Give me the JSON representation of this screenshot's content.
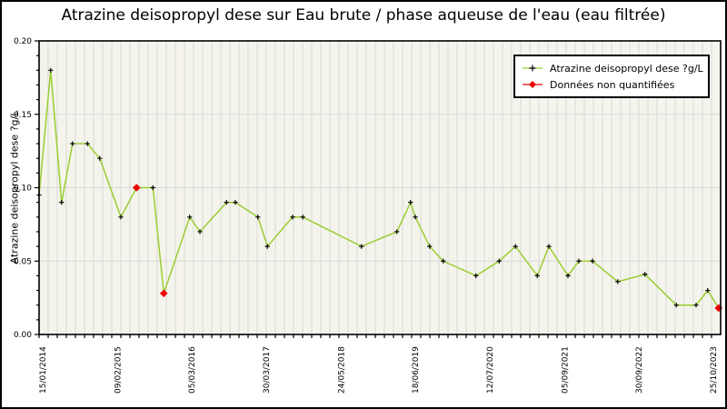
{
  "chart_data": {
    "type": "line",
    "title": "Atrazine deisopropyl dese sur Eau brute / phase aqueuse de l'eau (eau filtrée)",
    "ylabel": "Atrazine deisopropyl dese ?g/L",
    "xlabel": "",
    "ylim": [
      0.0,
      0.2
    ],
    "y_major_ticks": [
      0.0,
      0.05,
      0.1,
      0.15,
      0.2
    ],
    "y_minor_step": 0.01,
    "grid": {
      "vertical_minor": true,
      "horizontal_major": true
    },
    "legend_position": "top-right",
    "x_tick_labels": [
      "15/01/2014",
      "09/02/2015",
      "05/03/2016",
      "30/03/2017",
      "24/05/2018",
      "18/06/2019",
      "12/07/2020",
      "05/09/2021",
      "30/09/2022",
      "25/10/2023"
    ],
    "x_tick_pos": [
      0.005,
      0.115,
      0.224,
      0.333,
      0.443,
      0.552,
      0.661,
      0.771,
      0.88,
      0.989
    ],
    "legend": {
      "series_label": "Atrazine deisopropyl dese ?g/L",
      "non_quantified_label": "Données non quantifiées"
    },
    "series": [
      {
        "name": "Atrazine deisopropyl dese ?g/L",
        "color": "#9acd32",
        "marker": "plus",
        "points": [
          {
            "x": 0.0,
            "v": 0.095,
            "q": true
          },
          {
            "x": 0.017,
            "v": 0.18,
            "q": true
          },
          {
            "x": 0.033,
            "v": 0.09,
            "q": true
          },
          {
            "x": 0.049,
            "v": 0.13,
            "q": true
          },
          {
            "x": 0.071,
            "v": 0.13,
            "q": true
          },
          {
            "x": 0.089,
            "v": 0.12,
            "q": true
          },
          {
            "x": 0.12,
            "v": 0.08,
            "q": true
          },
          {
            "x": 0.143,
            "v": 0.1,
            "q": false
          },
          {
            "x": 0.167,
            "v": 0.1,
            "q": true
          },
          {
            "x": 0.183,
            "v": 0.028,
            "q": false
          },
          {
            "x": 0.221,
            "v": 0.08,
            "q": true
          },
          {
            "x": 0.236,
            "v": 0.07,
            "q": true
          },
          {
            "x": 0.275,
            "v": 0.09,
            "q": true
          },
          {
            "x": 0.288,
            "v": 0.09,
            "q": true
          },
          {
            "x": 0.321,
            "v": 0.08,
            "q": true
          },
          {
            "x": 0.335,
            "v": 0.06,
            "q": true
          },
          {
            "x": 0.372,
            "v": 0.08,
            "q": true
          },
          {
            "x": 0.387,
            "v": 0.08,
            "q": true
          },
          {
            "x": 0.473,
            "v": 0.06,
            "q": true
          },
          {
            "x": 0.525,
            "v": 0.07,
            "q": true
          },
          {
            "x": 0.545,
            "v": 0.09,
            "q": true
          },
          {
            "x": 0.552,
            "v": 0.08,
            "q": true
          },
          {
            "x": 0.573,
            "v": 0.06,
            "q": true
          },
          {
            "x": 0.593,
            "v": 0.05,
            "q": true
          },
          {
            "x": 0.641,
            "v": 0.04,
            "q": true
          },
          {
            "x": 0.675,
            "v": 0.05,
            "q": true
          },
          {
            "x": 0.699,
            "v": 0.06,
            "q": true
          },
          {
            "x": 0.731,
            "v": 0.04,
            "q": true
          },
          {
            "x": 0.748,
            "v": 0.06,
            "q": true
          },
          {
            "x": 0.776,
            "v": 0.04,
            "q": true
          },
          {
            "x": 0.792,
            "v": 0.05,
            "q": true
          },
          {
            "x": 0.812,
            "v": 0.05,
            "q": true
          },
          {
            "x": 0.849,
            "v": 0.036,
            "q": true
          },
          {
            "x": 0.889,
            "v": 0.041,
            "q": true
          },
          {
            "x": 0.935,
            "v": 0.02,
            "q": true
          },
          {
            "x": 0.964,
            "v": 0.02,
            "q": true
          },
          {
            "x": 0.981,
            "v": 0.03,
            "q": true
          },
          {
            "x": 0.997,
            "v": 0.018,
            "q": false
          }
        ]
      }
    ]
  },
  "colors": {
    "background": "#ffffff",
    "plot_background": "#f5f4ec",
    "grid": "#d8d8d8",
    "axis": "#000000",
    "series_line": "#9acd32",
    "marker": "#000000",
    "non_quantified": "#ee0000"
  }
}
